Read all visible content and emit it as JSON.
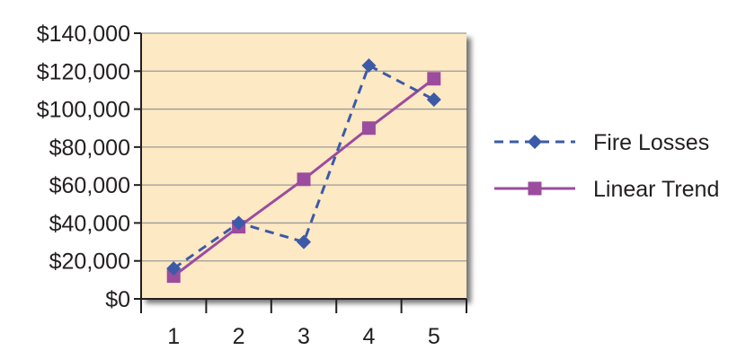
{
  "chart_data": {
    "type": "line",
    "categories": [
      "1",
      "2",
      "3",
      "4",
      "5"
    ],
    "ylim": [
      0,
      140000
    ],
    "yticks": [
      0,
      20000,
      40000,
      60000,
      80000,
      100000,
      120000,
      140000
    ],
    "ytick_labels": [
      "$0",
      "$20,000",
      "$40,000",
      "$60,000",
      "$80,000",
      "$100,000",
      "$120,000",
      "$140,000"
    ],
    "grid": true,
    "legend_position": "right",
    "plot_background": "#fde9c4",
    "series": [
      {
        "name": "Fire Losses",
        "values": [
          16000,
          40000,
          30000,
          123000,
          105000
        ],
        "color": "#3d5aa8",
        "line_style": "dashed",
        "marker": "diamond"
      },
      {
        "name": "Linear Trend",
        "values": [
          12000,
          38000,
          63000,
          90000,
          116000
        ],
        "color": "#9c4c9e",
        "line_style": "solid",
        "marker": "square"
      }
    ]
  }
}
